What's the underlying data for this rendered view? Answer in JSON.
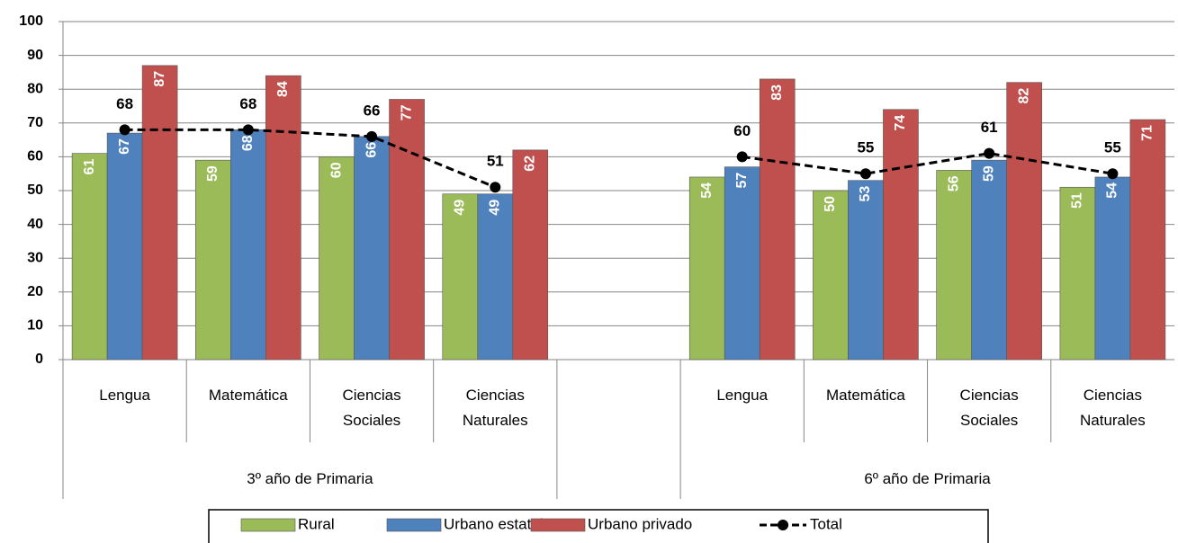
{
  "chart_data": {
    "type": "bar",
    "categories": [
      "Lengua",
      "Matemática",
      "Ciencias Sociales",
      "Ciencias Naturales",
      null,
      "Lengua",
      "Matemática",
      "Ciencias Sociales",
      "Ciencias Naturales"
    ],
    "groups": [
      {
        "label": "3º año de Primaria",
        "start": 0,
        "end": 3
      },
      {
        "label": "6º año de Primaria",
        "start": 5,
        "end": 8
      }
    ],
    "series": [
      {
        "name": "Rural",
        "color": "#9bbb59",
        "values": [
          61,
          59,
          60,
          49,
          null,
          54,
          50,
          56,
          51
        ]
      },
      {
        "name": "Urbano estatal",
        "color": "#4f81bd",
        "values": [
          67,
          68,
          66,
          49,
          null,
          57,
          53,
          59,
          54
        ]
      },
      {
        "name": "Urbano privado",
        "color": "#c0504d",
        "values": [
          87,
          84,
          77,
          62,
          null,
          83,
          74,
          82,
          71
        ]
      },
      {
        "name": "Total",
        "color": "#000000",
        "type": "line",
        "values": [
          68,
          68,
          66,
          51,
          null,
          60,
          55,
          61,
          55
        ]
      }
    ],
    "ylim": [
      0,
      100
    ],
    "yticks": [
      0,
      10,
      20,
      30,
      40,
      50,
      60,
      70,
      80,
      90,
      100
    ],
    "grid": true,
    "legend": "bottom"
  }
}
